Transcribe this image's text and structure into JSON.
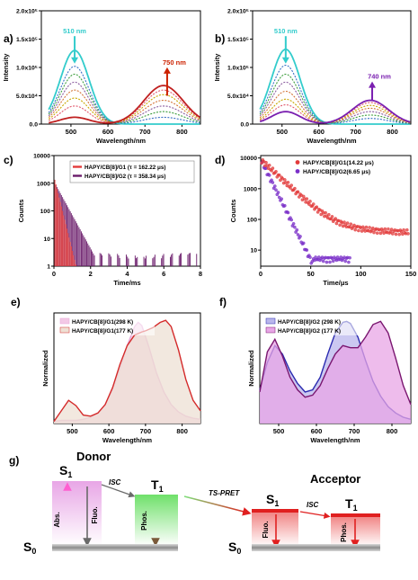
{
  "figure": {
    "panel_labels": [
      "a)",
      "b)",
      "c)",
      "d)",
      "e)",
      "f)",
      "g)"
    ]
  },
  "chart_data": [
    {
      "id": "a",
      "type": "line",
      "xlabel": "Wavelength/nm",
      "ylabel": "Intensity",
      "xlim": [
        420,
        850
      ],
      "ylim": [
        0,
        200000
      ],
      "xticks": [
        500,
        600,
        700,
        800
      ],
      "yticks": [
        0,
        50000,
        100000,
        150000,
        200000
      ],
      "ytick_labels": [
        "0.0",
        "5.0x10⁴",
        "1.0x10⁵",
        "1.5x10⁵",
        "2.0x10⁵"
      ],
      "annotations": [
        {
          "text": "510 nm",
          "color": "#33cccc",
          "at": [
            510,
            160000
          ],
          "arrow": "down",
          "arrow_to": 110000
        },
        {
          "text": "750 nm",
          "color": "#cc2200",
          "at": [
            760,
            105000
          ],
          "arrow": "up",
          "arrow_from": 50000
        }
      ],
      "green_peak_x": 510,
      "red_peak_x": 750,
      "green_width": 55,
      "red_width": 75,
      "series": [
        {
          "color": "#33cccc",
          "green": 130000,
          "red": 0,
          "style": "solid"
        },
        {
          "color": "#3a6fc4",
          "green": 102000,
          "red": 12000,
          "style": "dotted"
        },
        {
          "color": "#3e9e3e",
          "green": 88000,
          "red": 22000,
          "style": "dotted"
        },
        {
          "color": "#8a5a9e",
          "green": 74000,
          "red": 32000,
          "style": "dotted"
        },
        {
          "color": "#d4763a",
          "green": 60000,
          "red": 42000,
          "style": "dotted"
        },
        {
          "color": "#c8a800",
          "green": 46000,
          "red": 52000,
          "style": "dotted"
        },
        {
          "color": "#e15a6e",
          "green": 32000,
          "red": 60000,
          "style": "dotted"
        },
        {
          "color": "#c02020",
          "green": 12000,
          "red": 68000,
          "style": "solid"
        }
      ]
    },
    {
      "id": "b",
      "type": "line",
      "xlabel": "Wavelength/nm",
      "ylabel": "Intensity",
      "xlim": [
        420,
        850
      ],
      "ylim": [
        0,
        200000
      ],
      "xticks": [
        500,
        600,
        700,
        800
      ],
      "yticks": [
        0,
        50000,
        100000,
        150000,
        200000
      ],
      "ytick_labels": [
        "0.0",
        "5.0x10⁴",
        "1.0x10⁵",
        "1.5x10⁵",
        "2.0x10⁵"
      ],
      "annotations": [
        {
          "text": "510 nm",
          "color": "#33cccc",
          "at": [
            510,
            160000
          ],
          "arrow": "down",
          "arrow_to": 110000
        },
        {
          "text": "740 nm",
          "color": "#7a1fb0",
          "at": [
            745,
            80000
          ],
          "arrow": "up",
          "arrow_from": 42000
        }
      ],
      "green_peak_x": 510,
      "red_peak_x": 740,
      "green_width": 55,
      "red_width": 70,
      "series": [
        {
          "color": "#33cccc",
          "green": 132000,
          "red": 0,
          "style": "solid"
        },
        {
          "color": "#3a6fc4",
          "green": 104000,
          "red": 10000,
          "style": "dotted"
        },
        {
          "color": "#3e9e3e",
          "green": 88000,
          "red": 16000,
          "style": "dotted"
        },
        {
          "color": "#8a5a9e",
          "green": 74000,
          "red": 22000,
          "style": "dotted"
        },
        {
          "color": "#d4763a",
          "green": 58000,
          "red": 28000,
          "style": "dotted"
        },
        {
          "color": "#c8a800",
          "green": 44000,
          "red": 33000,
          "style": "dotted"
        },
        {
          "color": "#e15a6e",
          "green": 34000,
          "red": 38000,
          "style": "dotted"
        },
        {
          "color": "#7a1fb0",
          "green": 22000,
          "red": 42000,
          "style": "solid"
        }
      ]
    },
    {
      "id": "c",
      "type": "bar",
      "xlabel": "Time/ms",
      "ylabel": "Counts",
      "xlim": [
        0,
        8
      ],
      "ylim_log": [
        1,
        10000
      ],
      "xticks": [
        0,
        2,
        4,
        6,
        8
      ],
      "yticks": [
        1,
        10,
        100,
        1000,
        10000
      ],
      "ytick_labels": [
        "1",
        "10",
        "100",
        "1000",
        "10000"
      ],
      "legend_position": "top-right",
      "series": [
        {
          "name": "HAPY/CB[8]/G1 (τ = 162.22 μs)",
          "color": "#e23a3a",
          "tau": 0.16222,
          "n0": 1600,
          "tmax": 1.7
        },
        {
          "name": "HAPY/CB[8]/G2 (τ = 358.34 μs)",
          "color": "#6a1b6a",
          "tau": 0.35834,
          "n0": 1100,
          "tmax": 7.8
        }
      ]
    },
    {
      "id": "d",
      "type": "scatter",
      "xlabel": "Time/μs",
      "ylabel": "Counts",
      "xlim": [
        0,
        150
      ],
      "ylim_log": [
        3,
        12000
      ],
      "xticks": [
        0,
        50,
        100,
        150
      ],
      "yticks": [
        10,
        100,
        1000,
        10000
      ],
      "ytick_labels": [
        "10",
        "100",
        "1000",
        "10000"
      ],
      "legend_position": "top-right",
      "series": [
        {
          "name": "HAPY/CB[8]/G1(14.22 μs)",
          "color": "#e23a3a",
          "tau": 14.22,
          "n0": 9000,
          "tail": 55,
          "tmax": 148
        },
        {
          "name": "HAPY/CB[8]/G2(6.65 μs)",
          "color": "#7a2fc8",
          "tau": 6.65,
          "n0": 9000,
          "tail": 0,
          "tmax": 90
        }
      ]
    },
    {
      "id": "e",
      "type": "area",
      "xlabel": "Wavelength/nm",
      "ylabel": "Normalized",
      "xlim": [
        450,
        850
      ],
      "ylim": [
        0,
        1.05
      ],
      "xticks": [
        500,
        600,
        700,
        800
      ],
      "legend_position": "top-left",
      "series": [
        {
          "name": "HAPY/CB[8]/G1(298 K)",
          "color": "#e7a6d8",
          "fill": "#f3c9e6",
          "x": [
            450,
            470,
            490,
            510,
            530,
            550,
            570,
            590,
            610,
            630,
            650,
            670,
            680,
            690,
            710,
            730,
            750,
            770,
            790,
            810,
            830,
            850
          ],
          "y": [
            0.02,
            0.03,
            0.03,
            0.03,
            0.04,
            0.06,
            0.1,
            0.18,
            0.32,
            0.52,
            0.74,
            0.92,
            0.96,
            0.93,
            0.72,
            0.48,
            0.3,
            0.18,
            0.11,
            0.07,
            0.05,
            0.04
          ]
        },
        {
          "name": "HAPY/CB[8]/G1(177 K)",
          "color": "#d42a2a",
          "fill": "#eee0d4",
          "x": [
            450,
            470,
            490,
            510,
            530,
            550,
            570,
            590,
            610,
            630,
            650,
            670,
            690,
            700,
            720,
            740,
            755,
            770,
            790,
            810,
            830,
            850
          ],
          "y": [
            0.02,
            0.12,
            0.22,
            0.17,
            0.08,
            0.07,
            0.1,
            0.18,
            0.34,
            0.56,
            0.74,
            0.84,
            0.87,
            0.88,
            0.91,
            0.96,
            0.98,
            0.92,
            0.7,
            0.42,
            0.22,
            0.12
          ]
        }
      ]
    },
    {
      "id": "f",
      "type": "area",
      "xlabel": "Wavelength/nm",
      "ylabel": "Normalized",
      "xlim": [
        450,
        850
      ],
      "ylim": [
        0,
        1.05
      ],
      "xticks": [
        500,
        600,
        700,
        800
      ],
      "legend_position": "top-left",
      "series": [
        {
          "name": "HAPY/CB[8]/G2 (298 K)",
          "color": "#2a2ab0",
          "fill": "#b9b6ec",
          "x": [
            450,
            470,
            490,
            510,
            530,
            550,
            570,
            590,
            610,
            630,
            650,
            670,
            680,
            690,
            710,
            730,
            750,
            770,
            790,
            810,
            830,
            850
          ],
          "y": [
            0.32,
            0.58,
            0.74,
            0.66,
            0.5,
            0.38,
            0.3,
            0.32,
            0.44,
            0.66,
            0.86,
            0.96,
            0.97,
            0.95,
            0.82,
            0.6,
            0.4,
            0.26,
            0.16,
            0.1,
            0.06,
            0.04
          ]
        },
        {
          "name": "HAPY/CB[8]/G2 (177 K)",
          "color": "#7a1670",
          "fill": "#e8a6e6",
          "x": [
            450,
            470,
            490,
            510,
            530,
            550,
            570,
            590,
            610,
            630,
            650,
            670,
            690,
            710,
            730,
            750,
            770,
            790,
            810,
            830,
            850
          ],
          "y": [
            0.3,
            0.68,
            0.8,
            0.64,
            0.44,
            0.32,
            0.25,
            0.27,
            0.36,
            0.52,
            0.66,
            0.74,
            0.72,
            0.72,
            0.82,
            0.94,
            0.97,
            0.86,
            0.62,
            0.36,
            0.18
          ]
        }
      ]
    }
  ],
  "diagram": {
    "donor_title": "Donor",
    "acceptor_title": "Acceptor",
    "donor_s1": "S",
    "donor_s1_sub": "1",
    "donor_t1": "T",
    "donor_t1_sub": "1",
    "acceptor_s1": "S",
    "acceptor_s1_sub": "1",
    "acceptor_t1": "T",
    "acceptor_t1_sub": "1",
    "s0": "S",
    "s0_sub": "0",
    "s0_right": "S",
    "s0_right_sub": "0",
    "isc_left": "ISC",
    "isc_right": "ISC",
    "ts_pret": "TS-PRET",
    "abs": "Abs.",
    "fluo_left": "Fluo.",
    "phos_left": "Phos.",
    "fluo_right": "Fluo.",
    "phos_right": "Phos.",
    "colors": {
      "donor_s1": "#e8a6e6",
      "donor_t1": "#7de07a",
      "acceptor": "#e02020",
      "ground": "#9a9a9a"
    }
  }
}
